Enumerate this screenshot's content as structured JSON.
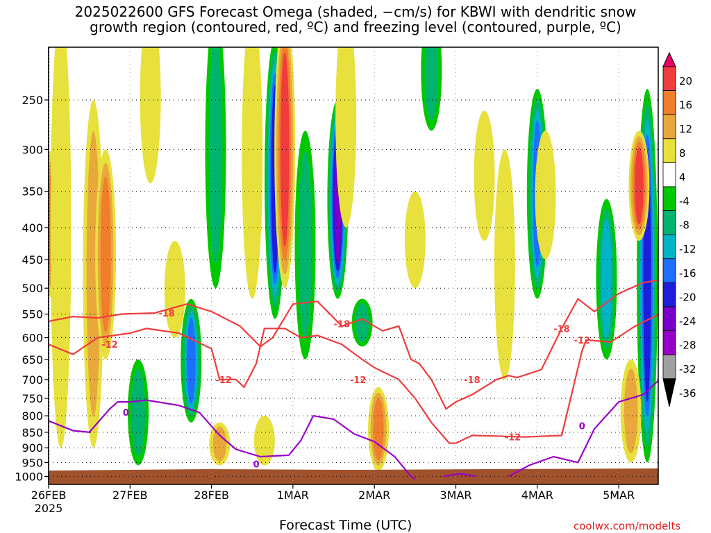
{
  "title": {
    "line1": "2025022600 GFS Forecast Omega (shaded, −cm/s) for KBWI with dendritic snow",
    "line2": "growth region (contoured, red, ºC) and freezing level (contoured, purple, ºC)"
  },
  "credit": "coolwx.com/modelts",
  "chart_data": {
    "type": "heatmap",
    "xlabel": "Forecast Time (UTC)",
    "x_ticks": [
      "26FEB",
      "27FEB",
      "28FEB",
      "1MAR",
      "2MAR",
      "3MAR",
      "4MAR",
      "5MAR"
    ],
    "x_year": "2025",
    "y_ticks": [
      250,
      300,
      350,
      400,
      450,
      500,
      550,
      600,
      650,
      700,
      750,
      800,
      850,
      900,
      950,
      1000
    ],
    "y_scale": "log-pressure",
    "y_range": [
      1030,
      200
    ],
    "x_range_days": [
      0,
      7.5
    ],
    "colorbar": {
      "levels": [
        20,
        16,
        12,
        8,
        4,
        -4,
        -8,
        -12,
        -16,
        -20,
        -24,
        -28,
        -32,
        -36
      ],
      "colors": [
        "#e8006a",
        "#f03c3c",
        "#f07e2a",
        "#e8a83c",
        "#e8e03c",
        "#ffffff",
        "#00c800",
        "#00b46e",
        "#00b4c8",
        "#1e6eff",
        "#1e1edc",
        "#7800c8",
        "#9600c8",
        "#a0a0a0",
        "#000000"
      ]
    },
    "omega_features": [
      {
        "day": 0.05,
        "p_top": 300,
        "p_bot": 520,
        "v": 12
      },
      {
        "day": 0.15,
        "p_top": 180,
        "p_bot": 900,
        "v": 6
      },
      {
        "day": 0.55,
        "p_top": 250,
        "p_bot": 900,
        "v": 8
      },
      {
        "day": 0.7,
        "p_top": 300,
        "p_bot": 650,
        "v": 14
      },
      {
        "day": 1.1,
        "p_top": 650,
        "p_bot": 960,
        "v": -8
      },
      {
        "day": 1.25,
        "p_top": 180,
        "p_bot": 340,
        "v": 6
      },
      {
        "day": 1.55,
        "p_top": 420,
        "p_bot": 600,
        "v": 6
      },
      {
        "day": 1.75,
        "p_top": 520,
        "p_bot": 820,
        "v": -16
      },
      {
        "day": 2.05,
        "p_top": 180,
        "p_bot": 500,
        "v": -8
      },
      {
        "day": 2.1,
        "p_top": 820,
        "p_bot": 960,
        "v": 8
      },
      {
        "day": 2.5,
        "p_top": 180,
        "p_bot": 520,
        "v": 6
      },
      {
        "day": 2.65,
        "p_top": 800,
        "p_bot": 960,
        "v": 6
      },
      {
        "day": 2.78,
        "p_top": 200,
        "p_bot": 560,
        "v": -20
      },
      {
        "day": 2.9,
        "p_top": 180,
        "p_bot": 500,
        "v": 18
      },
      {
        "day": 3.15,
        "p_top": 280,
        "p_bot": 650,
        "v": -8
      },
      {
        "day": 3.55,
        "p_top": 250,
        "p_bot": 520,
        "v": -24
      },
      {
        "day": 3.65,
        "p_top": 180,
        "p_bot": 400,
        "v": 6
      },
      {
        "day": 3.85,
        "p_top": 520,
        "p_bot": 620,
        "v": -8
      },
      {
        "day": 4.05,
        "p_top": 720,
        "p_bot": 980,
        "v": 14
      },
      {
        "day": 4.5,
        "p_top": 350,
        "p_bot": 500,
        "v": 6
      },
      {
        "day": 4.7,
        "p_top": 180,
        "p_bot": 280,
        "v": -8
      },
      {
        "day": 5.35,
        "p_top": 260,
        "p_bot": 420,
        "v": 6
      },
      {
        "day": 5.6,
        "p_top": 300,
        "p_bot": 700,
        "v": 6
      },
      {
        "day": 6.0,
        "p_top": 240,
        "p_bot": 520,
        "v": -16
      },
      {
        "day": 6.1,
        "p_top": 280,
        "p_bot": 450,
        "v": 6
      },
      {
        "day": 6.85,
        "p_top": 360,
        "p_bot": 650,
        "v": -12
      },
      {
        "day": 7.35,
        "p_top": 240,
        "p_bot": 950,
        "v": -20
      },
      {
        "day": 7.25,
        "p_top": 280,
        "p_bot": 420,
        "v": 16
      },
      {
        "day": 7.15,
        "p_top": 650,
        "p_bot": 950,
        "v": 10
      }
    ],
    "contours": {
      "dgz_minus18": {
        "label": "-18",
        "color": "#f03c3c",
        "points": [
          [
            0.0,
            565
          ],
          [
            0.3,
            555
          ],
          [
            0.6,
            558
          ],
          [
            0.9,
            550
          ],
          [
            1.3,
            548
          ],
          [
            1.7,
            530
          ],
          [
            2.0,
            545
          ],
          [
            2.35,
            575
          ],
          [
            2.6,
            620
          ],
          [
            2.75,
            600
          ],
          [
            3.0,
            530
          ],
          [
            3.3,
            525
          ],
          [
            3.6,
            575
          ],
          [
            3.85,
            560
          ],
          [
            4.1,
            585
          ],
          [
            4.3,
            575
          ],
          [
            4.45,
            650
          ],
          [
            4.55,
            660
          ],
          [
            4.7,
            700
          ],
          [
            4.88,
            780
          ],
          [
            5.0,
            760
          ],
          [
            5.2,
            740
          ],
          [
            5.5,
            700
          ],
          [
            5.65,
            690
          ],
          [
            5.75,
            695
          ],
          [
            6.05,
            675
          ],
          [
            6.3,
            580
          ],
          [
            6.5,
            520
          ],
          [
            6.7,
            545
          ],
          [
            7.0,
            510
          ],
          [
            7.3,
            490
          ],
          [
            7.5,
            485
          ]
        ]
      },
      "dgz_minus12": {
        "label": "-12",
        "color": "#f03c3c",
        "points": [
          [
            0.0,
            615
          ],
          [
            0.3,
            638
          ],
          [
            0.6,
            600
          ],
          [
            1.0,
            590
          ],
          [
            1.2,
            580
          ],
          [
            1.6,
            590
          ],
          [
            2.0,
            625
          ],
          [
            2.1,
            700
          ],
          [
            2.3,
            700
          ],
          [
            2.4,
            720
          ],
          [
            2.55,
            660
          ],
          [
            2.65,
            580
          ],
          [
            2.9,
            580
          ],
          [
            3.1,
            600
          ],
          [
            3.3,
            595
          ],
          [
            3.6,
            615
          ],
          [
            3.85,
            650
          ],
          [
            4.0,
            670
          ],
          [
            4.3,
            700
          ],
          [
            4.5,
            750
          ],
          [
            4.7,
            820
          ],
          [
            4.92,
            885
          ],
          [
            5.0,
            885
          ],
          [
            5.2,
            860
          ],
          [
            5.5,
            862
          ],
          [
            5.85,
            865
          ],
          [
            6.3,
            860
          ],
          [
            6.55,
            630
          ],
          [
            6.6,
            605
          ],
          [
            6.9,
            610
          ],
          [
            7.2,
            575
          ],
          [
            7.5,
            550
          ]
        ]
      },
      "freezing_0": {
        "label": "0",
        "color": "#9a00c8",
        "points": [
          [
            0.0,
            815
          ],
          [
            0.3,
            845
          ],
          [
            0.5,
            850
          ],
          [
            0.75,
            780
          ],
          [
            0.85,
            760
          ],
          [
            1.0,
            760
          ],
          [
            1.2,
            755
          ],
          [
            1.6,
            770
          ],
          [
            1.85,
            790
          ],
          [
            2.1,
            860
          ],
          [
            2.3,
            905
          ],
          [
            2.6,
            930
          ],
          [
            2.95,
            925
          ],
          [
            3.1,
            875
          ],
          [
            3.25,
            800
          ],
          [
            3.5,
            810
          ],
          [
            3.75,
            855
          ],
          [
            4.0,
            880
          ],
          [
            4.25,
            930
          ],
          [
            4.45,
            1000
          ],
          [
            4.5,
            1010
          ]
        ]
      },
      "freezing_0b": {
        "label": "0",
        "color": "#9a00c8",
        "points": [
          [
            4.85,
            1000
          ],
          [
            5.05,
            990
          ],
          [
            5.25,
            1000
          ]
        ]
      },
      "freezing_0c": {
        "label": "0",
        "color": "#9a00c8",
        "points": [
          [
            5.65,
            1000
          ],
          [
            5.9,
            960
          ],
          [
            6.2,
            930
          ],
          [
            6.5,
            950
          ],
          [
            6.7,
            840
          ],
          [
            7.0,
            760
          ],
          [
            7.3,
            740
          ],
          [
            7.5,
            700
          ]
        ]
      }
    }
  }
}
